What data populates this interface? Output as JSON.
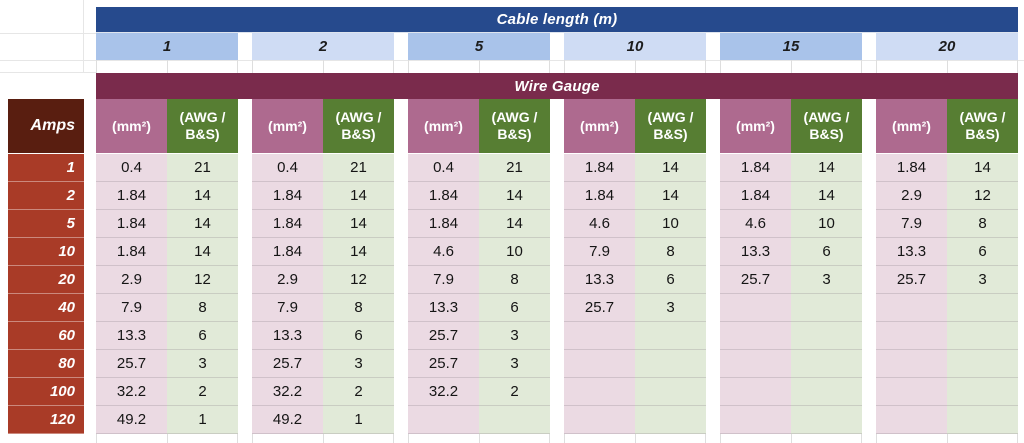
{
  "header": {
    "cable_length_label": "Cable length (m)",
    "wire_gauge_label": "Wire Gauge",
    "amps_label": "Amps"
  },
  "colors": {
    "navy_bar": "#264a8d",
    "length_cell_dark": "#a9c3ea",
    "length_cell_light": "#cfdcf4",
    "maroon_bar": "#7a2b4c",
    "mm2_header_bg": "#ae6a8f",
    "awg_header_bg": "#577e33",
    "amps_header_bg": "#591e10",
    "amps_row_bg": "#a93b27",
    "mm2_cell_bg": "#ebdae3",
    "awg_cell_bg": "#e1ead8"
  },
  "chart_data": {
    "type": "table",
    "column_group_header": "Cable length (m)",
    "cable_lengths_m": [
      "1",
      "2",
      "5",
      "10",
      "15",
      "20"
    ],
    "section_header": "Wire Gauge",
    "row_header": "Amps",
    "subcolumns": [
      "(mm²)",
      "(AWG / B&S)"
    ],
    "rows": [
      {
        "amps": "1",
        "cells": [
          [
            "0.4",
            "21"
          ],
          [
            "0.4",
            "21"
          ],
          [
            "0.4",
            "21"
          ],
          [
            "1.84",
            "14"
          ],
          [
            "1.84",
            "14"
          ],
          [
            "1.84",
            "14"
          ]
        ]
      },
      {
        "amps": "2",
        "cells": [
          [
            "1.84",
            "14"
          ],
          [
            "1.84",
            "14"
          ],
          [
            "1.84",
            "14"
          ],
          [
            "1.84",
            "14"
          ],
          [
            "1.84",
            "14"
          ],
          [
            "2.9",
            "12"
          ]
        ]
      },
      {
        "amps": "5",
        "cells": [
          [
            "1.84",
            "14"
          ],
          [
            "1.84",
            "14"
          ],
          [
            "1.84",
            "14"
          ],
          [
            "4.6",
            "10"
          ],
          [
            "4.6",
            "10"
          ],
          [
            "7.9",
            "8"
          ]
        ]
      },
      {
        "amps": "10",
        "cells": [
          [
            "1.84",
            "14"
          ],
          [
            "1.84",
            "14"
          ],
          [
            "4.6",
            "10"
          ],
          [
            "7.9",
            "8"
          ],
          [
            "13.3",
            "6"
          ],
          [
            "13.3",
            "6"
          ]
        ]
      },
      {
        "amps": "20",
        "cells": [
          [
            "2.9",
            "12"
          ],
          [
            "2.9",
            "12"
          ],
          [
            "7.9",
            "8"
          ],
          [
            "13.3",
            "6"
          ],
          [
            "25.7",
            "3"
          ],
          [
            "25.7",
            "3"
          ]
        ]
      },
      {
        "amps": "40",
        "cells": [
          [
            "7.9",
            "8"
          ],
          [
            "7.9",
            "8"
          ],
          [
            "13.3",
            "6"
          ],
          [
            "25.7",
            "3"
          ],
          [
            "",
            ""
          ],
          [
            "",
            ""
          ]
        ]
      },
      {
        "amps": "60",
        "cells": [
          [
            "13.3",
            "6"
          ],
          [
            "13.3",
            "6"
          ],
          [
            "25.7",
            "3"
          ],
          [
            "",
            ""
          ],
          [
            "",
            ""
          ],
          [
            "",
            ""
          ]
        ]
      },
      {
        "amps": "80",
        "cells": [
          [
            "25.7",
            "3"
          ],
          [
            "25.7",
            "3"
          ],
          [
            "25.7",
            "3"
          ],
          [
            "",
            ""
          ],
          [
            "",
            ""
          ],
          [
            "",
            ""
          ]
        ]
      },
      {
        "amps": "100",
        "cells": [
          [
            "32.2",
            "2"
          ],
          [
            "32.2",
            "2"
          ],
          [
            "32.2",
            "2"
          ],
          [
            "",
            ""
          ],
          [
            "",
            ""
          ],
          [
            "",
            ""
          ]
        ]
      },
      {
        "amps": "120",
        "cells": [
          [
            "49.2",
            "1"
          ],
          [
            "49.2",
            "1"
          ],
          [
            "",
            ""
          ],
          [
            "",
            ""
          ],
          [
            "",
            ""
          ],
          [
            "",
            ""
          ]
        ]
      }
    ]
  }
}
